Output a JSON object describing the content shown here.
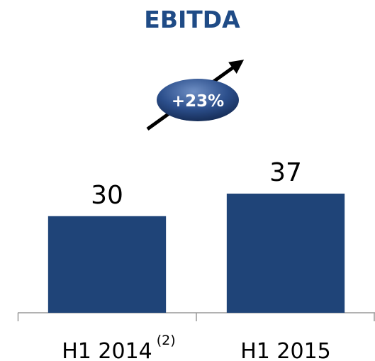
{
  "chart_data": {
    "type": "bar",
    "title": "EBITDA",
    "categories": [
      "H1 2014",
      "H1 2015"
    ],
    "category_superscripts": [
      "(2)",
      null
    ],
    "values": [
      30,
      37
    ],
    "color": "#1f4478",
    "annotation": "+23%"
  }
}
